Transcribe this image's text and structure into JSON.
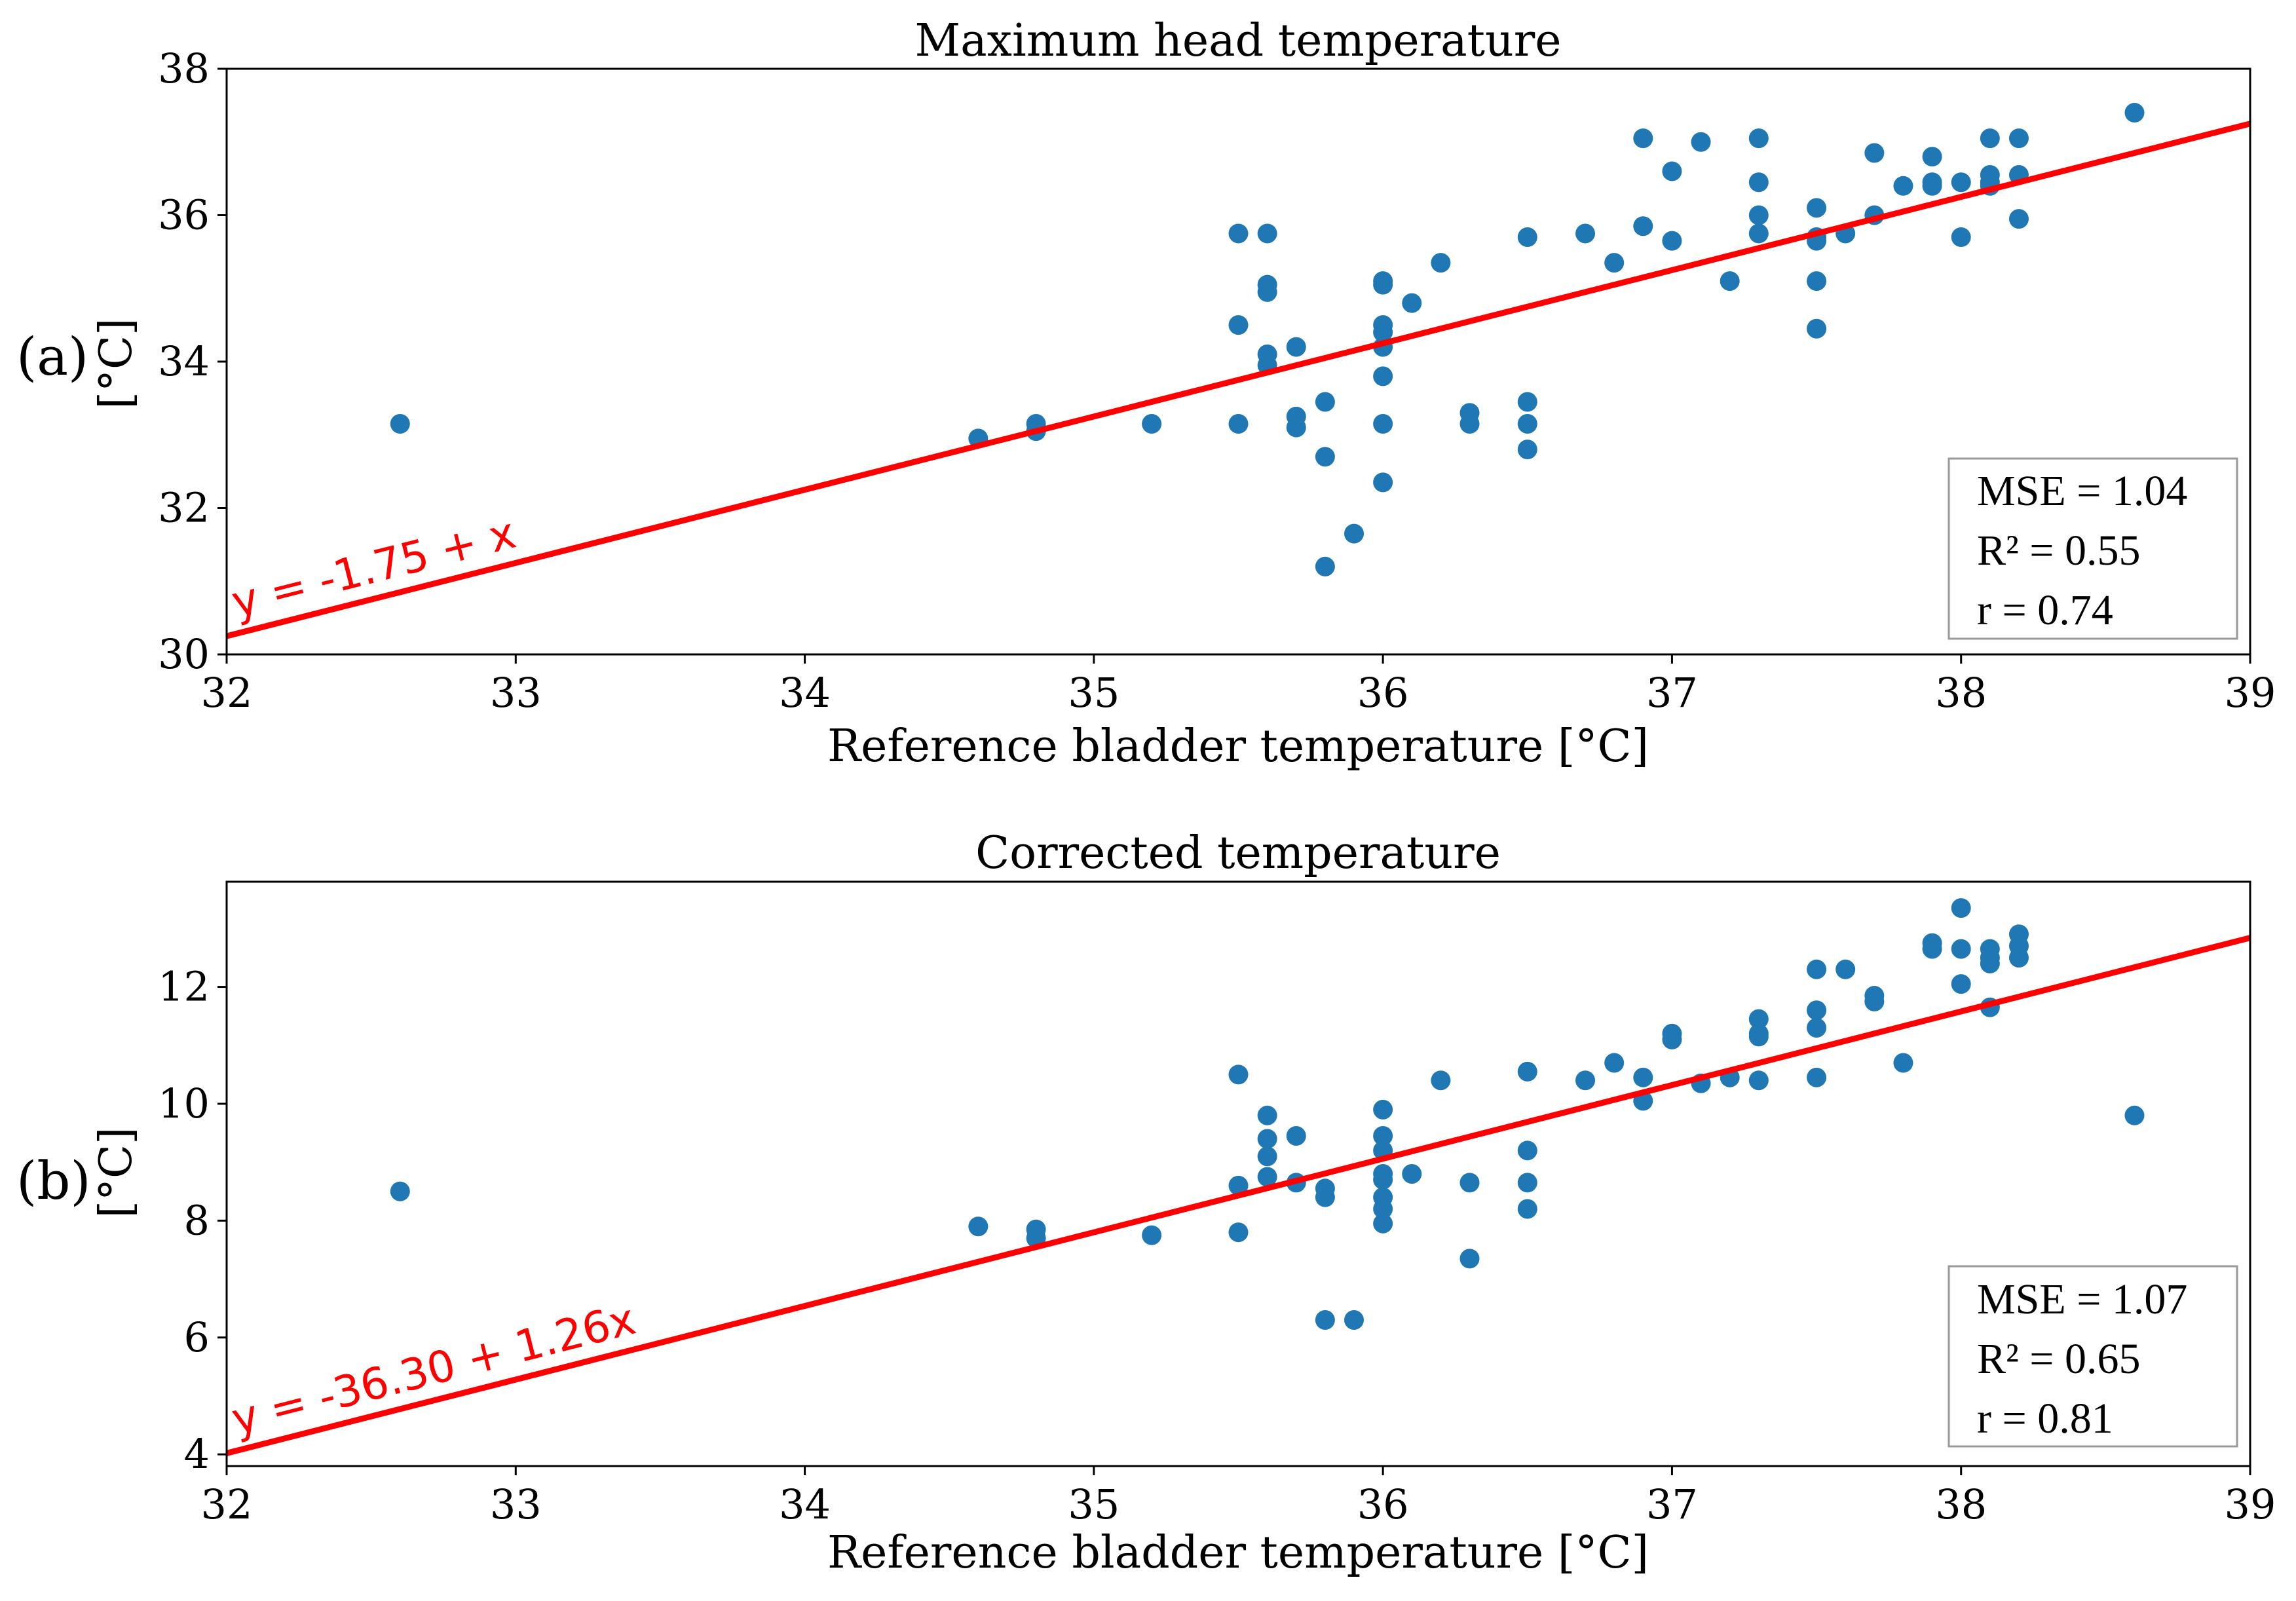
{
  "chart_data": [
    {
      "type": "scatter",
      "panel_label": "(a)",
      "title": "Maximum head temperature",
      "xlabel": "Reference bladder temperature [°C]",
      "ylabel": "[°C]",
      "xlim": [
        32,
        39
      ],
      "ylim": [
        30,
        38
      ],
      "xticks": [
        32,
        33,
        34,
        35,
        36,
        37,
        38,
        39
      ],
      "yticks": [
        30,
        32,
        34,
        36,
        38
      ],
      "points": [
        [
          32.6,
          33.15
        ],
        [
          34.6,
          32.95
        ],
        [
          34.8,
          33.15
        ],
        [
          34.8,
          33.05
        ],
        [
          35.2,
          33.15
        ],
        [
          35.5,
          35.75
        ],
        [
          35.5,
          34.5
        ],
        [
          35.5,
          33.15
        ],
        [
          35.6,
          35.75
        ],
        [
          35.6,
          35.05
        ],
        [
          35.6,
          34.95
        ],
        [
          35.6,
          34.1
        ],
        [
          35.6,
          33.95
        ],
        [
          35.7,
          34.2
        ],
        [
          35.7,
          33.25
        ],
        [
          35.7,
          33.1
        ],
        [
          35.8,
          33.45
        ],
        [
          35.8,
          32.7
        ],
        [
          35.8,
          31.2
        ],
        [
          35.9,
          31.65
        ],
        [
          36.0,
          35.1
        ],
        [
          36.0,
          35.05
        ],
        [
          36.0,
          34.5
        ],
        [
          36.0,
          34.4
        ],
        [
          36.0,
          34.2
        ],
        [
          36.0,
          33.8
        ],
        [
          36.0,
          33.15
        ],
        [
          36.0,
          32.35
        ],
        [
          36.1,
          34.8
        ],
        [
          36.2,
          35.35
        ],
        [
          36.3,
          33.3
        ],
        [
          36.3,
          33.15
        ],
        [
          36.5,
          35.7
        ],
        [
          36.5,
          33.45
        ],
        [
          36.5,
          33.15
        ],
        [
          36.5,
          32.8
        ],
        [
          36.7,
          35.75
        ],
        [
          36.8,
          35.35
        ],
        [
          36.9,
          37.05
        ],
        [
          36.9,
          35.85
        ],
        [
          37.0,
          36.6
        ],
        [
          37.0,
          35.65
        ],
        [
          37.1,
          37.0
        ],
        [
          37.2,
          35.1
        ],
        [
          37.3,
          37.05
        ],
        [
          37.3,
          36.45
        ],
        [
          37.3,
          36.0
        ],
        [
          37.3,
          35.75
        ],
        [
          37.5,
          36.1
        ],
        [
          37.5,
          35.7
        ],
        [
          37.5,
          35.65
        ],
        [
          37.5,
          35.1
        ],
        [
          37.5,
          34.45
        ],
        [
          37.6,
          35.75
        ],
        [
          37.7,
          36.85
        ],
        [
          37.7,
          36.0
        ],
        [
          37.8,
          36.4
        ],
        [
          37.9,
          36.8
        ],
        [
          37.9,
          36.45
        ],
        [
          37.9,
          36.4
        ],
        [
          38.0,
          36.45
        ],
        [
          38.0,
          35.7
        ],
        [
          38.1,
          37.05
        ],
        [
          38.1,
          36.55
        ],
        [
          38.1,
          36.45
        ],
        [
          38.1,
          36.4
        ],
        [
          38.2,
          37.05
        ],
        [
          38.2,
          36.55
        ],
        [
          38.2,
          35.95
        ],
        [
          38.6,
          37.4
        ]
      ],
      "fit": {
        "intercept": -1.75,
        "slope": 1.0,
        "label": "y = -1.75 + x"
      },
      "stats": {
        "mse": "MSE = 1.04",
        "r2": "R² = 0.55",
        "r": "r = 0.74"
      },
      "colors": {
        "points": "#1f77b4",
        "fit": "#ff0000"
      }
    },
    {
      "type": "scatter",
      "panel_label": "(b)",
      "title": "Corrected temperature",
      "xlabel": "Reference bladder temperature [°C]",
      "ylabel": "[°C]",
      "xlim": [
        32,
        39
      ],
      "ylim": [
        3.8,
        13.8
      ],
      "xticks": [
        32,
        33,
        34,
        35,
        36,
        37,
        38,
        39
      ],
      "yticks": [
        4,
        6,
        8,
        10,
        12
      ],
      "points": [
        [
          32.6,
          8.5
        ],
        [
          34.6,
          7.9
        ],
        [
          34.8,
          7.85
        ],
        [
          34.8,
          7.7
        ],
        [
          35.2,
          7.75
        ],
        [
          35.5,
          10.5
        ],
        [
          35.5,
          8.6
        ],
        [
          35.5,
          7.8
        ],
        [
          35.6,
          9.8
        ],
        [
          35.6,
          9.4
        ],
        [
          35.6,
          9.1
        ],
        [
          35.6,
          8.75
        ],
        [
          35.7,
          9.45
        ],
        [
          35.7,
          8.65
        ],
        [
          35.8,
          8.55
        ],
        [
          35.8,
          8.4
        ],
        [
          35.8,
          6.3
        ],
        [
          35.9,
          6.3
        ],
        [
          36.0,
          9.9
        ],
        [
          36.0,
          9.45
        ],
        [
          36.0,
          9.2
        ],
        [
          36.0,
          8.8
        ],
        [
          36.0,
          8.7
        ],
        [
          36.0,
          8.4
        ],
        [
          36.0,
          8.2
        ],
        [
          36.0,
          7.95
        ],
        [
          36.1,
          8.8
        ],
        [
          36.2,
          10.4
        ],
        [
          36.3,
          8.65
        ],
        [
          36.3,
          7.35
        ],
        [
          36.5,
          10.55
        ],
        [
          36.5,
          9.2
        ],
        [
          36.5,
          8.65
        ],
        [
          36.5,
          8.2
        ],
        [
          36.7,
          10.4
        ],
        [
          36.8,
          10.7
        ],
        [
          36.9,
          10.45
        ],
        [
          36.9,
          10.05
        ],
        [
          37.0,
          11.2
        ],
        [
          37.0,
          11.1
        ],
        [
          37.1,
          10.35
        ],
        [
          37.2,
          10.45
        ],
        [
          37.3,
          11.45
        ],
        [
          37.3,
          11.2
        ],
        [
          37.3,
          11.15
        ],
        [
          37.3,
          10.4
        ],
        [
          37.5,
          12.3
        ],
        [
          37.5,
          11.6
        ],
        [
          37.5,
          11.3
        ],
        [
          37.5,
          10.45
        ],
        [
          37.6,
          12.3
        ],
        [
          37.7,
          11.85
        ],
        [
          37.7,
          11.75
        ],
        [
          37.8,
          10.7
        ],
        [
          37.9,
          12.75
        ],
        [
          37.9,
          12.65
        ],
        [
          38.0,
          13.35
        ],
        [
          38.0,
          12.65
        ],
        [
          38.0,
          12.05
        ],
        [
          38.1,
          12.65
        ],
        [
          38.1,
          12.5
        ],
        [
          38.1,
          12.4
        ],
        [
          38.1,
          11.65
        ],
        [
          38.2,
          12.9
        ],
        [
          38.2,
          12.7
        ],
        [
          38.2,
          12.5
        ],
        [
          38.6,
          9.8
        ]
      ],
      "fit": {
        "intercept": -36.3,
        "slope": 1.26,
        "label": "y = -36.30 + 1.26x"
      },
      "stats": {
        "mse": "MSE = 1.07",
        "r2": "R² = 0.65",
        "r": "r = 0.81"
      },
      "colors": {
        "points": "#1f77b4",
        "fit": "#ff0000"
      }
    }
  ]
}
